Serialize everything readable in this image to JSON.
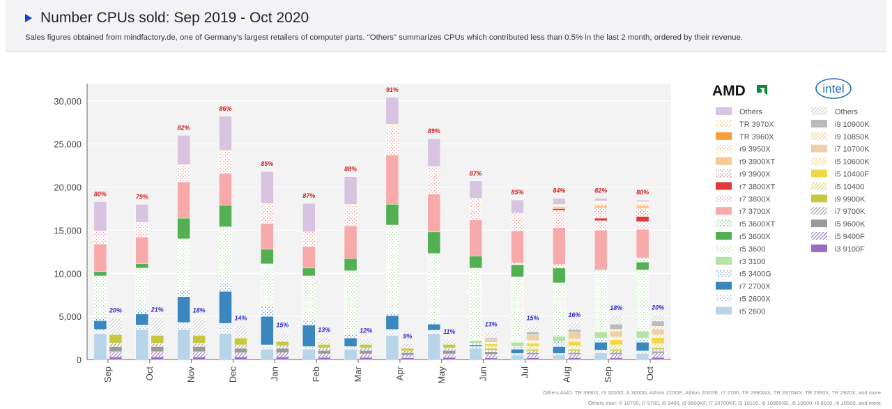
{
  "header": {
    "title": "Number CPUs sold: Sep 2019 - Oct 2020",
    "subtitle": "Sales figures obtained from mindfactory.de, one of Germany's largest retailers of computer parts. \"Others\" summarizes CPUs which contributed less than 0.5% in the last 2 month, ordered by their revenue."
  },
  "footnotes": {
    "amd": "Others AMD: TR 3990X, r3 3200G, A 3000G, Athlon 220GE, Athlon 200GE, r7 2700, TR 2990WX, TR 2970WX, TR 2950X, TR 2920X, and more",
    "intel": "Others Intel: i7 10700, i7 9700, i5 9400, i9 9900KF, i7 10700KF, i3 10100, i9 10980XE, i5 10600, i3 9100, i5 10500, and more"
  },
  "legend": {
    "amd_logo": "AMD",
    "intel_logo": "intel"
  },
  "colors": {
    "amd_share": "#cc2020",
    "intel_share": "#2a2acc",
    "plot_bg": "#f3f3f3"
  },
  "chart_data": {
    "type": "bar",
    "title": "Number CPUs sold: Sep 2019 - Oct 2020",
    "ylim": [
      0,
      32000
    ],
    "yticks": [
      0,
      5000,
      10000,
      15000,
      20000,
      25000,
      30000
    ],
    "ytick_labels": [
      "0",
      "5,000",
      "10,000",
      "15,000",
      "20,000",
      "25,000",
      "30,000"
    ],
    "grid": true,
    "legend_placement": "right",
    "categories": [
      "Sep",
      "Oct",
      "Nov",
      "Dec",
      "Jan",
      "Feb",
      "Mar",
      "Apr",
      "May",
      "Jun",
      "Jul",
      "Aug",
      "Sep",
      "Oct"
    ],
    "amd_share_labels": [
      "80%",
      "79%",
      "82%",
      "86%",
      "85%",
      "87%",
      "88%",
      "91%",
      "89%",
      "87%",
      "85%",
      "84%",
      "82%",
      "80%"
    ],
    "intel_share_labels": [
      "20%",
      "21%",
      "18%",
      "14%",
      "15%",
      "13%",
      "12%",
      "9%",
      "11%",
      "13%",
      "15%",
      "16%",
      "18%",
      "20%"
    ],
    "amd_series": [
      {
        "name": "r5 2600",
        "color": "#b8d4e8",
        "pattern": "solid",
        "values": [
          3000,
          3500,
          3500,
          3000,
          1200,
          1200,
          1200,
          2800,
          3000,
          1300,
          500,
          500,
          800,
          700
        ]
      },
      {
        "name": "r5 2600X",
        "color": "#7fa8d0",
        "pattern": "dots",
        "values": [
          500,
          500,
          800,
          1200,
          500,
          300,
          300,
          700,
          400,
          200,
          200,
          200,
          300,
          300
        ]
      },
      {
        "name": "r7 2700X",
        "color": "#3a87c0",
        "pattern": "solid",
        "values": [
          1000,
          1300,
          3000,
          3700,
          3300,
          2500,
          1000,
          1600,
          700,
          200,
          500,
          800,
          900,
          1000
        ]
      },
      {
        "name": "r5 3400G",
        "color": "#3a87c0",
        "pattern": "dots",
        "values": [
          400,
          700,
          800,
          1000,
          1200,
          500,
          400,
          200,
          300,
          200,
          300,
          600,
          500,
          500
        ]
      },
      {
        "name": "r3 3100",
        "color": "#b5e2a5",
        "pattern": "solid",
        "values": [
          0,
          0,
          0,
          0,
          0,
          0,
          0,
          0,
          0,
          300,
          500,
          600,
          700,
          800
        ]
      },
      {
        "name": "r5 3600",
        "color": "#a8d898",
        "pattern": "dots",
        "values": [
          4800,
          4600,
          5900,
          6500,
          4900,
          5200,
          7400,
          10300,
          7900,
          8400,
          7600,
          6200,
          6900,
          7100
        ]
      },
      {
        "name": "r5 3600X",
        "color": "#52b052",
        "pattern": "solid",
        "values": [
          500,
          500,
          2400,
          2500,
          1700,
          900,
          1400,
          2400,
          2500,
          1400,
          1400,
          1700,
          0,
          900
        ]
      },
      {
        "name": "r5 3600XT",
        "color": "#52b052",
        "pattern": "dots",
        "values": [
          0,
          0,
          0,
          0,
          0,
          0,
          0,
          0,
          0,
          0,
          200,
          400,
          300,
          500
        ]
      },
      {
        "name": "r7 3700X",
        "color": "#f8aaaa",
        "pattern": "solid",
        "values": [
          3200,
          3100,
          4200,
          3700,
          3000,
          2500,
          3800,
          5700,
          4400,
          4200,
          3700,
          4300,
          4600,
          3300
        ]
      },
      {
        "name": "r7 3800X",
        "color": "#f08080",
        "pattern": "dots",
        "values": [
          1500,
          1700,
          2000,
          2500,
          2100,
          1700,
          2300,
          3300,
          3200,
          2300,
          2100,
          2000,
          1100,
          900
        ]
      },
      {
        "name": "r7 3800XT",
        "color": "#e03838",
        "pattern": "solid",
        "values": [
          0,
          0,
          0,
          0,
          0,
          0,
          0,
          0,
          0,
          0,
          0,
          200,
          300,
          600
        ]
      },
      {
        "name": "r9 3900X",
        "color": "#e05050",
        "pattern": "dots",
        "values": [
          0,
          0,
          0,
          0,
          0,
          0,
          0,
          0,
          0,
          0,
          0,
          0,
          1200,
          900
        ]
      },
      {
        "name": "r9 3900XT",
        "color": "#f8c890",
        "pattern": "solid",
        "values": [
          0,
          0,
          0,
          0,
          0,
          0,
          0,
          0,
          0,
          0,
          0,
          200,
          300,
          400
        ]
      },
      {
        "name": "r9 3950X",
        "color": "#f0a860",
        "pattern": "dots",
        "values": [
          0,
          0,
          0,
          200,
          200,
          0,
          200,
          300,
          0,
          200,
          0,
          300,
          500,
          400
        ]
      },
      {
        "name": "TR 3960X",
        "color": "#f59e3a",
        "pattern": "solid",
        "values": [
          0,
          0,
          0,
          0,
          0,
          0,
          0,
          0,
          0,
          0,
          0,
          0,
          0,
          0
        ]
      },
      {
        "name": "TR 3970X",
        "color": "#f5b060",
        "pattern": "dots",
        "values": [
          0,
          0,
          0,
          0,
          0,
          0,
          0,
          0,
          0,
          0,
          0,
          0,
          0,
          0
        ]
      },
      {
        "name": "Others",
        "color": "#d8c3e0",
        "pattern": "solid",
        "values": [
          3400,
          2100,
          3400,
          3900,
          3700,
          3300,
          3200,
          3100,
          3200,
          2000,
          1500,
          700,
          300,
          200
        ]
      }
    ],
    "intel_series": [
      {
        "name": "i3 9100F",
        "color": "#9b6cc0",
        "pattern": "solid",
        "values": [
          300,
          300,
          300,
          300,
          300,
          250,
          250,
          200,
          250,
          200,
          200,
          200,
          200,
          250
        ]
      },
      {
        "name": "i5 9400F",
        "color": "#9b6cc0",
        "pattern": "hatch",
        "values": [
          600,
          600,
          600,
          500,
          500,
          400,
          400,
          300,
          400,
          400,
          400,
          400,
          400,
          500
        ]
      },
      {
        "name": "i5 9600K",
        "color": "#999999",
        "pattern": "solid",
        "values": [
          600,
          600,
          600,
          500,
          500,
          400,
          400,
          300,
          400,
          300,
          200,
          200,
          200,
          200
        ]
      },
      {
        "name": "i7 9700K",
        "color": "#999999",
        "pattern": "hatch",
        "values": [
          400,
          400,
          400,
          400,
          300,
          300,
          300,
          200,
          300,
          200,
          200,
          200,
          200,
          200
        ]
      },
      {
        "name": "i9 9900K",
        "color": "#c8c840",
        "pattern": "solid",
        "values": [
          1000,
          900,
          900,
          800,
          500,
          400,
          400,
          300,
          400,
          200,
          200,
          200,
          200,
          200
        ]
      },
      {
        "name": "i5 10400",
        "color": "#d8d860",
        "pattern": "hatch",
        "values": [
          0,
          0,
          0,
          0,
          0,
          0,
          0,
          0,
          0,
          200,
          300,
          400,
          500,
          500
        ]
      },
      {
        "name": "i5 10400F",
        "color": "#f0d848",
        "pattern": "solid",
        "values": [
          0,
          0,
          0,
          0,
          0,
          0,
          0,
          0,
          0,
          300,
          400,
          500,
          600,
          700
        ]
      },
      {
        "name": "i5 10600K",
        "color": "#f0d880",
        "pattern": "hatch",
        "values": [
          0,
          0,
          0,
          0,
          0,
          0,
          0,
          0,
          0,
          200,
          300,
          300,
          300,
          300
        ]
      },
      {
        "name": "i7 10700K",
        "color": "#ecd0a8",
        "pattern": "solid",
        "values": [
          0,
          0,
          0,
          0,
          0,
          0,
          0,
          0,
          0,
          300,
          700,
          800,
          700,
          700
        ]
      },
      {
        "name": "i9 10850K",
        "color": "#ecc890",
        "pattern": "hatch",
        "values": [
          0,
          0,
          0,
          0,
          0,
          0,
          0,
          0,
          0,
          0,
          0,
          0,
          200,
          300
        ]
      },
      {
        "name": "i9 10900K",
        "color": "#bbbbbb",
        "pattern": "solid",
        "values": [
          0,
          0,
          0,
          0,
          0,
          0,
          0,
          0,
          0,
          200,
          300,
          300,
          600,
          600
        ]
      },
      {
        "name": "Others",
        "color": "#cccccc",
        "pattern": "hatch",
        "values": [
          1900,
          2100,
          2000,
          1400,
          1000,
          800,
          700,
          500,
          600,
          700,
          700,
          800,
          1000,
          700
        ]
      }
    ]
  }
}
